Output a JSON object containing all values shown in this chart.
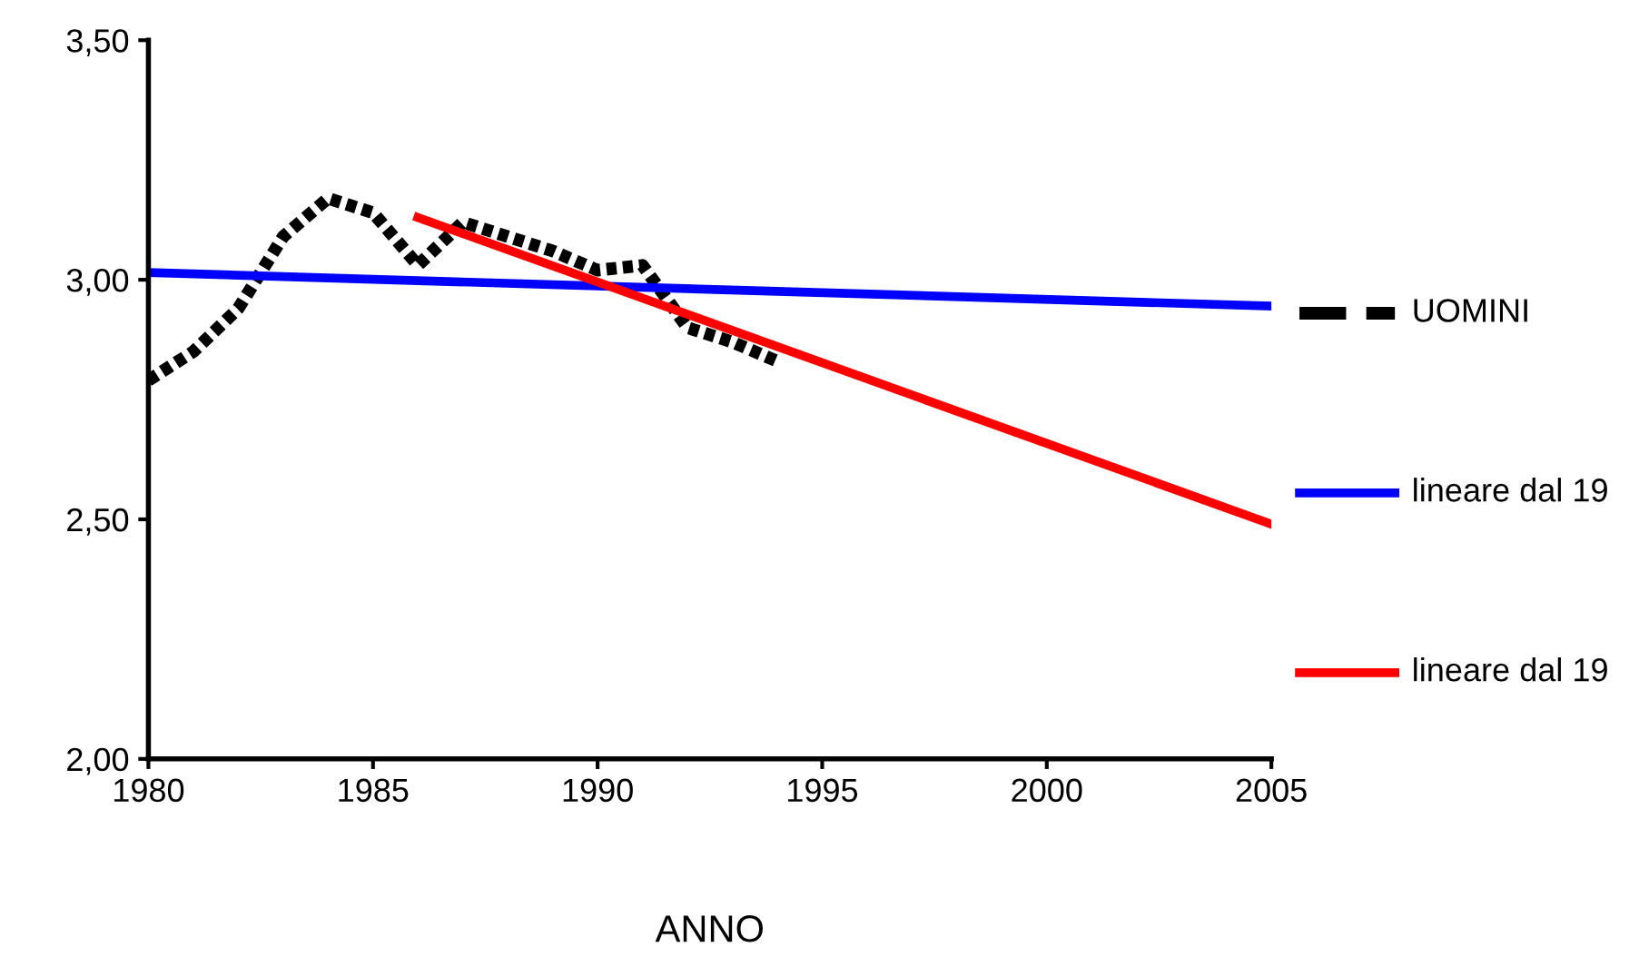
{
  "chart_data": {
    "type": "line",
    "xlabel": "ANNO",
    "legend": "right",
    "grid": false,
    "xlim": [
      1980,
      2005
    ],
    "xticks": [
      1980,
      1985,
      1990,
      1995,
      2000,
      2005
    ],
    "ylim": [
      2.0,
      3.5
    ],
    "yticks": [
      {
        "value": 2.0,
        "label": "2,00"
      },
      {
        "value": 2.5,
        "label": "2,50"
      },
      {
        "value": 3.0,
        "label": "3,00"
      },
      {
        "value": 3.5,
        "label": "3,50"
      }
    ],
    "series": [
      {
        "name": "UOMINI",
        "color": "#000000",
        "line_style": "dotted",
        "x": [
          1980,
          1981,
          1982,
          1983,
          1984,
          1985,
          1986,
          1987,
          1988,
          1989,
          1990,
          1991,
          1992,
          1993,
          1994
        ],
        "values": [
          2.79,
          2.85,
          2.94,
          3.09,
          3.17,
          3.14,
          3.03,
          3.12,
          3.09,
          3.06,
          3.02,
          3.03,
          2.9,
          2.87,
          2.83
        ]
      },
      {
        "name": "lineare dal 19",
        "color": "#0000ff",
        "line_style": "solid",
        "x": [
          1980,
          2005
        ],
        "values": [
          3.015,
          2.945
        ]
      },
      {
        "name": "lineare dal 19",
        "color": "#ff0000",
        "line_style": "solid",
        "x": [
          1986,
          2005
        ],
        "values": [
          3.13,
          2.49
        ]
      }
    ]
  }
}
